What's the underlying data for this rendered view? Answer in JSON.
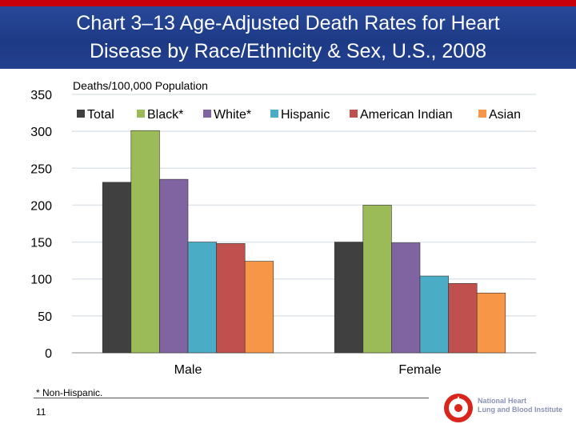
{
  "slide": {
    "title_line1": "Chart 3–13  Age-Adjusted Death Rates for Heart",
    "title_line2": "Disease by Race/Ethnicity & Sex, U.S., 2008",
    "footnote": "* Non-Hispanic.",
    "page_number": "11",
    "logo": {
      "line1": "National Heart",
      "line2": "Lung and Blood Institute"
    },
    "colors": {
      "header": "#1d3a86",
      "header_stripe": "#c8000a"
    }
  },
  "chart_data": {
    "type": "bar",
    "title": "",
    "ylabel": "Deaths/100,000 Population",
    "xlabel": "",
    "ylim": [
      0,
      350
    ],
    "yticks": [
      "0",
      "50",
      "100",
      "150",
      "200",
      "250",
      "300",
      "350"
    ],
    "grid": true,
    "legend_position": "top",
    "categories": [
      "Male",
      "Female"
    ],
    "series": [
      {
        "name": "Total",
        "color": "#404040",
        "values": [
          231,
          150
        ]
      },
      {
        "name": "Black*",
        "color": "#9bbb59",
        "values": [
          301,
          200
        ]
      },
      {
        "name": "White*",
        "color": "#8064a2",
        "values": [
          235,
          149
        ]
      },
      {
        "name": "Hispanic",
        "color": "#4bacc6",
        "values": [
          150,
          104
        ]
      },
      {
        "name": "American Indian",
        "color": "#c0504d",
        "values": [
          148,
          94
        ]
      },
      {
        "name": "Asian",
        "color": "#f79646",
        "values": [
          124,
          81
        ]
      }
    ]
  }
}
